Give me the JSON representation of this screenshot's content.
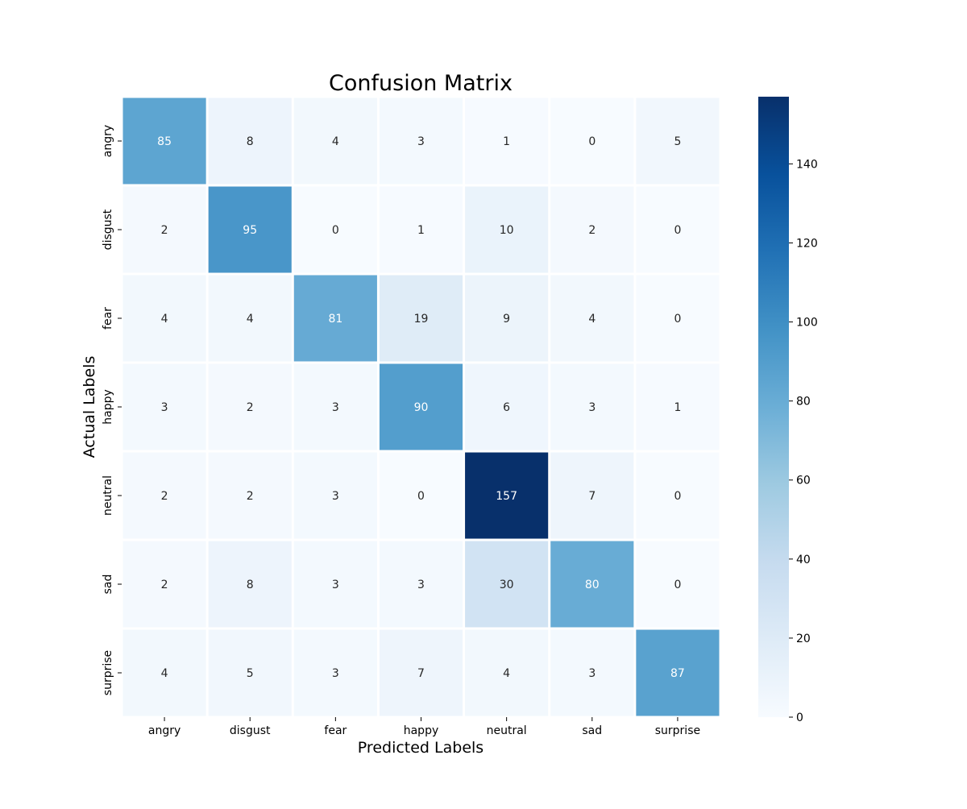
{
  "chart_data": {
    "type": "heatmap",
    "title": "Confusion Matrix",
    "xlabel": "Predicted Labels",
    "ylabel": "Actual Labels",
    "x_categories": [
      "angry",
      "disgust",
      "fear",
      "happy",
      "neutral",
      "sad",
      "surprise"
    ],
    "y_categories": [
      "angry",
      "disgust",
      "fear",
      "happy",
      "neutral",
      "sad",
      "surprise"
    ],
    "matrix": [
      [
        85,
        8,
        4,
        3,
        1,
        0,
        5
      ],
      [
        2,
        95,
        0,
        1,
        10,
        2,
        0
      ],
      [
        4,
        4,
        81,
        19,
        9,
        4,
        0
      ],
      [
        3,
        2,
        3,
        90,
        6,
        3,
        1
      ],
      [
        2,
        2,
        3,
        0,
        157,
        7,
        0
      ],
      [
        2,
        8,
        3,
        3,
        30,
        80,
        0
      ],
      [
        4,
        5,
        3,
        7,
        4,
        3,
        87
      ]
    ],
    "colormap": "Blues",
    "value_range": [
      0,
      157
    ],
    "colorbar": {
      "ticks": [
        0,
        20,
        40,
        60,
        80,
        100,
        120,
        140
      ]
    },
    "annotations": true
  }
}
